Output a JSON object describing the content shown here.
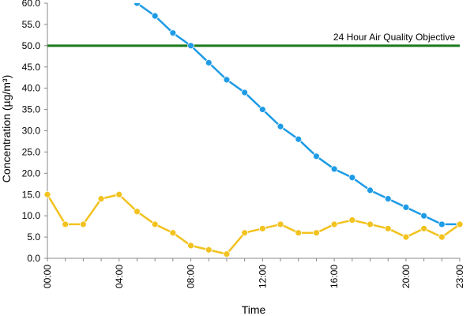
{
  "chart_data": {
    "type": "line",
    "title": "",
    "xlabel": "Time",
    "ylabel": "Concentration (µg/m³)",
    "ylim": [
      0,
      60
    ],
    "yticks": [
      "0.0",
      "5.0",
      "10.0",
      "15.0",
      "20.0",
      "25.0",
      "30.0",
      "35.0",
      "40.0",
      "45.0",
      "50.0",
      "55.0",
      "60.0"
    ],
    "xticks": [
      "00:00",
      "04:00",
      "08:00",
      "12:00",
      "16:00",
      "20:00",
      "23:00"
    ],
    "x": [
      0,
      1,
      2,
      3,
      4,
      5,
      6,
      7,
      8,
      9,
      10,
      11,
      12,
      13,
      14,
      15,
      16,
      17,
      18,
      19,
      20,
      21,
      22,
      23
    ],
    "series": [
      {
        "color": "#1e9be6",
        "values": [
          null,
          null,
          null,
          null,
          null,
          60,
          57,
          53,
          50,
          46,
          42,
          39,
          35,
          31,
          28,
          24,
          21,
          19,
          16,
          14,
          12,
          10,
          8,
          8
        ]
      },
      {
        "color": "#f2c21e",
        "values": [
          15,
          8,
          8,
          14,
          15,
          11,
          8,
          6,
          3,
          2,
          1,
          6,
          7,
          8,
          6,
          6,
          8,
          9,
          8,
          7,
          5,
          7,
          5,
          8
        ]
      }
    ],
    "annotations": [
      {
        "text": "24 Hour Air Quality Objective",
        "y": 50,
        "color": "#1a7a1a"
      }
    ],
    "grid": false,
    "legend": "none"
  }
}
